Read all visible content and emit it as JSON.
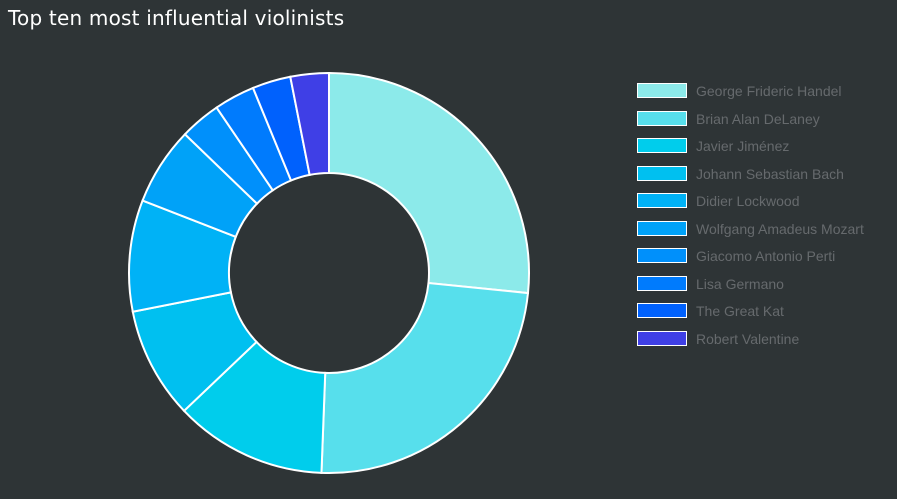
{
  "title": "Top ten most influential violinists",
  "chart_data": {
    "type": "pie",
    "variant": "doughnut",
    "title": "Top ten most influential violinists",
    "legend": "right",
    "labels": [
      "George Frideric Handel",
      "Brian Alan DeLaney",
      "Javier Jiménez",
      "Johann Sebastian Bach",
      "Didier Lockwood",
      "Wolfgang Amadeus Mozart",
      "Giacomo Antonio Perti",
      "Lisa Germano",
      "The Great Kat",
      "Robert Valentine"
    ],
    "values": [
      26.6,
      24.0,
      12.3,
      9.0,
      9.0,
      6.3,
      3.3,
      3.3,
      3.1,
      3.1
    ],
    "colors": [
      "#8ceaea",
      "#57dfec",
      "#00cdec",
      "#00c0f0",
      "#00b2f6",
      "#00a2f8",
      "#0090fb",
      "#007bfd",
      "#0061fd",
      "#3f3fe6"
    ]
  }
}
